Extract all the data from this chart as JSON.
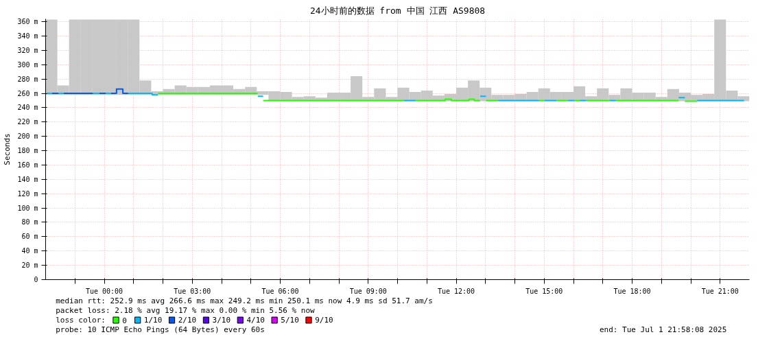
{
  "chart_data": {
    "type": "line",
    "title": "24小时前的数据 from 中国 江西 AS9808",
    "ylabel": "Seconds",
    "legend_title": "loss color:",
    "legend": "bottom",
    "grid": true,
    "xlim": [
      "2025-06-30T22:00",
      "2025-07-01T22:00"
    ],
    "ylim": [
      0,
      364
    ],
    "xticks": [
      {
        "value": "2025-06-30T23:00",
        "label": null
      },
      {
        "value": "2025-07-01T00:00",
        "label": "Tue 00:00"
      },
      {
        "value": "2025-07-01T01:00",
        "label": null
      },
      {
        "value": "2025-07-01T02:00",
        "label": null
      },
      {
        "value": "2025-07-01T03:00",
        "label": "Tue 03:00"
      },
      {
        "value": "2025-07-01T04:00",
        "label": null
      },
      {
        "value": "2025-07-01T05:00",
        "label": null
      },
      {
        "value": "2025-07-01T06:00",
        "label": "Tue 06:00"
      },
      {
        "value": "2025-07-01T07:00",
        "label": null
      },
      {
        "value": "2025-07-01T08:00",
        "label": null
      },
      {
        "value": "2025-07-01T09:00",
        "label": "Tue 09:00"
      },
      {
        "value": "2025-07-01T10:00",
        "label": null
      },
      {
        "value": "2025-07-01T11:00",
        "label": null
      },
      {
        "value": "2025-07-01T12:00",
        "label": "Tue 12:00"
      },
      {
        "value": "2025-07-01T13:00",
        "label": null
      },
      {
        "value": "2025-07-01T14:00",
        "label": null
      },
      {
        "value": "2025-07-01T15:00",
        "label": "Tue 15:00"
      },
      {
        "value": "2025-07-01T16:00",
        "label": null
      },
      {
        "value": "2025-07-01T17:00",
        "label": null
      },
      {
        "value": "2025-07-01T18:00",
        "label": "Tue 18:00"
      },
      {
        "value": "2025-07-01T19:00",
        "label": null
      },
      {
        "value": "2025-07-01T20:00",
        "label": null
      },
      {
        "value": "2025-07-01T21:00",
        "label": "Tue 21:00"
      }
    ],
    "yticks": [
      0,
      {
        "value": 20,
        "label": "20 m"
      },
      {
        "value": 40,
        "label": "40 m"
      },
      {
        "value": 60,
        "label": "60 m"
      },
      {
        "value": 80,
        "label": "80 m"
      },
      {
        "value": 100,
        "label": "100 m"
      },
      {
        "value": 120,
        "label": "120 m"
      },
      {
        "value": 140,
        "label": "140 m"
      },
      {
        "value": 160,
        "label": "160 m"
      },
      {
        "value": 180,
        "label": "180 m"
      },
      {
        "value": 200,
        "label": "200 m"
      },
      {
        "value": 220,
        "label": "220 m"
      },
      {
        "value": 240,
        "label": "240 m"
      },
      {
        "value": 260,
        "label": "260 m"
      },
      {
        "value": 280,
        "label": "280 m"
      },
      {
        "value": 300,
        "label": "300 m"
      },
      {
        "value": 320,
        "label": "320 m"
      },
      {
        "value": 340,
        "label": "340 m"
      },
      {
        "value": 360,
        "label": "360 m"
      }
    ],
    "series": [
      {
        "type": "bar",
        "color": "#c8c8c8",
        "x": [
          "2025-06-30T22:12",
          "2025-06-30T22:36",
          "2025-06-30T23:00",
          "2025-06-30T23:24",
          "2025-06-30T23:48",
          "2025-07-01T00:12",
          "2025-07-01T00:36",
          "2025-07-01T01:00",
          "2025-07-01T01:24",
          "2025-07-01T01:48",
          "2025-07-01T02:12",
          "2025-07-01T02:36",
          "2025-07-01T03:00",
          "2025-07-01T03:24",
          "2025-07-01T03:48",
          "2025-07-01T04:12",
          "2025-07-01T04:36",
          "2025-07-01T05:00",
          "2025-07-01T05:24",
          "2025-07-01T05:48",
          "2025-07-01T06:12",
          "2025-07-01T06:36",
          "2025-07-01T07:00",
          "2025-07-01T07:24",
          "2025-07-01T07:48",
          "2025-07-01T08:12",
          "2025-07-01T08:36",
          "2025-07-01T09:00",
          "2025-07-01T09:24",
          "2025-07-01T09:48",
          "2025-07-01T10:12",
          "2025-07-01T10:36",
          "2025-07-01T11:00",
          "2025-07-01T11:24",
          "2025-07-01T11:48",
          "2025-07-01T12:12",
          "2025-07-01T12:36",
          "2025-07-01T13:00",
          "2025-07-01T13:24",
          "2025-07-01T13:48",
          "2025-07-01T14:12",
          "2025-07-01T14:36",
          "2025-07-01T15:00",
          "2025-07-01T15:24",
          "2025-07-01T15:48",
          "2025-07-01T16:12",
          "2025-07-01T16:36",
          "2025-07-01T17:00",
          "2025-07-01T17:24",
          "2025-07-01T17:48",
          "2025-07-01T18:12",
          "2025-07-01T18:36",
          "2025-07-01T19:00",
          "2025-07-01T19:24",
          "2025-07-01T19:48",
          "2025-07-01T20:12",
          "2025-07-01T20:36",
          "2025-07-01T21:00",
          "2025-07-01T21:24",
          "2025-07-01T21:48"
        ],
        "base": [
          258,
          258,
          258,
          258,
          258,
          258,
          258,
          258,
          258,
          258,
          258,
          258,
          258,
          258,
          258,
          258,
          258,
          258,
          258,
          249,
          249,
          249,
          249,
          249,
          249,
          249,
          249,
          249,
          249,
          249,
          249,
          249,
          249,
          249,
          249,
          249,
          249,
          249,
          249,
          249,
          249,
          249,
          249,
          249,
          249,
          249,
          249,
          249,
          249,
          249,
          249,
          249,
          249,
          249,
          249,
          249,
          249,
          249,
          249,
          249
        ],
        "values": [
          105,
          13,
          105,
          105,
          105,
          105,
          105,
          105,
          20,
          5,
          8,
          13,
          11,
          11,
          13,
          13,
          8,
          11,
          5,
          14,
          13,
          6,
          7,
          5,
          12,
          12,
          35,
          6,
          18,
          6,
          19,
          13,
          15,
          8,
          10,
          19,
          29,
          19,
          9,
          9,
          10,
          13,
          18,
          13,
          13,
          21,
          7,
          18,
          9,
          18,
          12,
          12,
          6,
          17,
          12,
          9,
          10,
          114,
          15,
          7
        ]
      },
      {
        "name": "0",
        "color": "#26ff00",
        "x": [
          "2025-07-01T01:50",
          "2025-07-01T05:14"
        ],
        "values": [
          260,
          260
        ]
      },
      {
        "name": "1/10",
        "color": "#00b8ff",
        "x": [
          "2025-06-30T22:02",
          "2025-06-30T22:13"
        ],
        "values": [
          260,
          260
        ]
      },
      {
        "name": "2/10",
        "color": "#0059ff",
        "x": [
          "2025-06-30T22:13",
          "2025-06-30T22:26"
        ],
        "values": [
          260,
          260
        ]
      },
      {
        "name": "3/10",
        "color": "#5e00ff"
      },
      {
        "name": "4/10",
        "color": "#7e00ff"
      },
      {
        "name": "5/10",
        "color": "#dd00ff"
      },
      {
        "name": "9/10",
        "color": "#ff0000"
      },
      {
        "color": "#26ff00",
        "x": [
          "2025-07-01T05:25",
          "2025-07-01T10:13"
        ],
        "values": [
          250,
          250
        ]
      },
      {
        "color": "#26ff00",
        "x": [
          "2025-07-01T10:37",
          "2025-07-01T11:37",
          "2025-07-01T11:37",
          "2025-07-01T11:50",
          "2025-07-01T11:50",
          "2025-07-01T12:26",
          "2025-07-01T12:26",
          "2025-07-01T12:37",
          "2025-07-01T12:37",
          "2025-07-01T12:49"
        ],
        "values": [
          250,
          250,
          252,
          252,
          250,
          250,
          252,
          252,
          250,
          250
        ]
      },
      {
        "color": "#26ff00",
        "x": [
          "2025-07-01T13:01",
          "2025-07-01T13:26"
        ],
        "values": [
          250,
          250
        ]
      },
      {
        "color": "#26ff00",
        "x": [
          "2025-07-01T14:50",
          "2025-07-01T15:01"
        ],
        "values": [
          250,
          250
        ]
      },
      {
        "color": "#26ff00",
        "x": [
          "2025-07-01T15:25",
          "2025-07-01T15:49"
        ],
        "values": [
          250,
          250
        ]
      },
      {
        "color": "#26ff00",
        "x": [
          "2025-07-01T16:02",
          "2025-07-01T16:13"
        ],
        "values": [
          250,
          250
        ]
      },
      {
        "color": "#26ff00",
        "x": [
          "2025-07-01T16:26",
          "2025-07-01T17:14"
        ],
        "values": [
          250,
          250
        ]
      },
      {
        "color": "#26ff00",
        "x": [
          "2025-07-01T17:26",
          "2025-07-01T19:35"
        ],
        "values": [
          250,
          250
        ]
      },
      {
        "color": "#26ff00",
        "x": [
          "2025-07-01T19:48",
          "2025-07-01T20:13"
        ],
        "values": [
          249,
          249
        ]
      },
      {
        "color": "#00b8ff",
        "x": [
          "2025-06-30T22:26",
          "2025-06-30T22:37"
        ],
        "values": [
          260,
          260
        ]
      },
      {
        "color": "#00b8ff",
        "x": [
          "2025-06-30T23:37",
          "2025-06-30T23:50"
        ],
        "values": [
          260,
          260
        ]
      },
      {
        "color": "#00b8ff",
        "x": [
          "2025-07-01T00:03",
          "2025-07-01T00:14"
        ],
        "values": [
          260,
          260
        ]
      },
      {
        "color": "#00b8ff",
        "x": [
          "2025-07-01T00:49",
          "2025-07-01T01:38",
          "2025-07-01T01:38",
          "2025-07-01T01:50"
        ],
        "values": [
          260,
          260,
          258,
          258
        ]
      },
      {
        "color": "#00b8ff",
        "x": [
          "2025-07-01T05:14",
          "2025-07-01T05:25"
        ],
        "values": [
          256,
          256
        ]
      },
      {
        "color": "#00b8ff",
        "x": [
          "2025-07-01T10:13",
          "2025-07-01T10:37"
        ],
        "values": [
          250,
          250
        ]
      },
      {
        "color": "#00b8ff",
        "x": [
          "2025-07-01T12:49",
          "2025-07-01T13:01"
        ],
        "values": [
          256,
          256
        ]
      },
      {
        "color": "#00b8ff",
        "x": [
          "2025-07-01T13:26",
          "2025-07-01T14:50"
        ],
        "values": [
          250,
          250
        ]
      },
      {
        "color": "#00b8ff",
        "x": [
          "2025-07-01T15:01",
          "2025-07-01T15:25"
        ],
        "values": [
          250,
          250
        ]
      },
      {
        "color": "#00b8ff",
        "x": [
          "2025-07-01T15:49",
          "2025-07-01T16:02"
        ],
        "values": [
          250,
          250
        ]
      },
      {
        "color": "#00b8ff",
        "x": [
          "2025-07-01T16:13",
          "2025-07-01T16:26"
        ],
        "values": [
          250,
          250
        ]
      },
      {
        "color": "#00b8ff",
        "x": [
          "2025-07-01T17:14",
          "2025-07-01T17:26"
        ],
        "values": [
          250,
          250
        ]
      },
      {
        "color": "#00b8ff",
        "x": [
          "2025-07-01T19:35",
          "2025-07-01T19:48"
        ],
        "values": [
          254,
          254
        ]
      },
      {
        "color": "#00b8ff",
        "x": [
          "2025-07-01T20:13",
          "2025-07-01T21:49"
        ],
        "values": [
          250,
          250
        ]
      },
      {
        "color": "#0059ff",
        "x": [
          "2025-06-30T22:37",
          "2025-06-30T23:37"
        ],
        "values": [
          260,
          260
        ]
      },
      {
        "color": "#0059ff",
        "x": [
          "2025-06-30T23:50",
          "2025-07-01T00:03"
        ],
        "values": [
          260,
          260
        ]
      },
      {
        "color": "#0059ff",
        "x": [
          "2025-07-01T00:14",
          "2025-07-01T00:25",
          "2025-07-01T00:25",
          "2025-07-01T00:38",
          "2025-07-01T00:38",
          "2025-07-01T00:49"
        ],
        "values": [
          260,
          260,
          266,
          266,
          260,
          260
        ]
      }
    ],
    "annotations": [
      "median rtt:  252.9 ms avg  266.6 ms max  249.2 ms min  250.1 ms now  4.9 ms sd  51.7   am/s",
      "packet loss: 2.18 % avg  19.17 % max  0.00 % min  5.56 % now",
      "probe:       10 ICMP Echo Pings (64 Bytes) every 60s",
      "end: Tue Jul  1 21:58:08 2025"
    ]
  }
}
